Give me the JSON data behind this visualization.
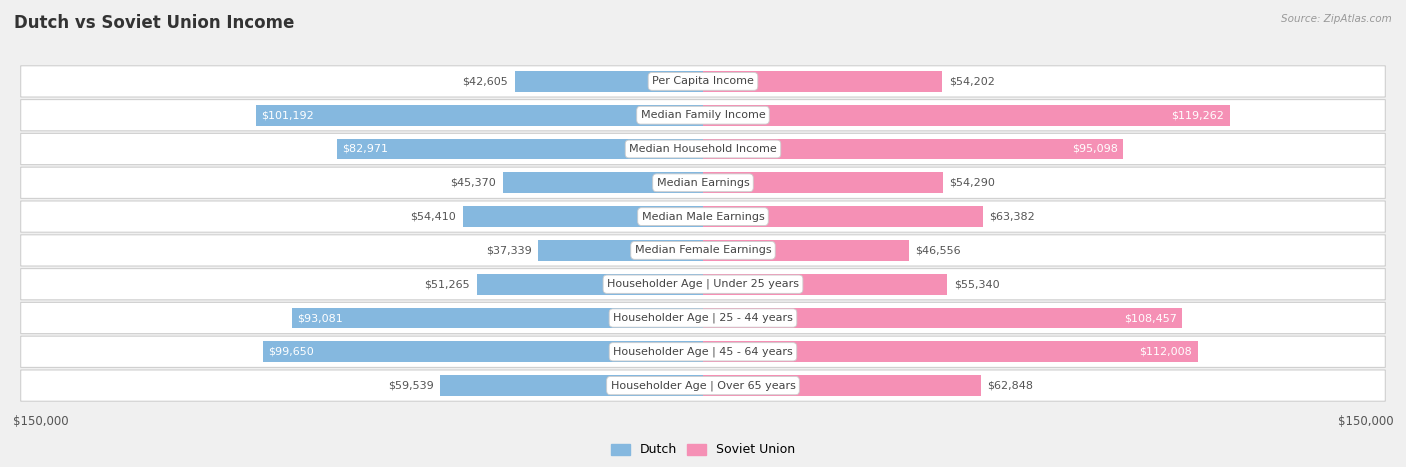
{
  "title": "Dutch vs Soviet Union Income",
  "source": "Source: ZipAtlas.com",
  "categories": [
    "Per Capita Income",
    "Median Family Income",
    "Median Household Income",
    "Median Earnings",
    "Median Male Earnings",
    "Median Female Earnings",
    "Householder Age | Under 25 years",
    "Householder Age | 25 - 44 years",
    "Householder Age | 45 - 64 years",
    "Householder Age | Over 65 years"
  ],
  "dutch_values": [
    42605,
    101192,
    82971,
    45370,
    54410,
    37339,
    51265,
    93081,
    99650,
    59539
  ],
  "soviet_values": [
    54202,
    119262,
    95098,
    54290,
    63382,
    46556,
    55340,
    108457,
    112008,
    62848
  ],
  "dutch_labels": [
    "$42,605",
    "$101,192",
    "$82,971",
    "$45,370",
    "$54,410",
    "$37,339",
    "$51,265",
    "$93,081",
    "$99,650",
    "$59,539"
  ],
  "soviet_labels": [
    "$54,202",
    "$119,262",
    "$95,098",
    "$54,290",
    "$63,382",
    "$46,556",
    "$55,340",
    "$108,457",
    "$112,008",
    "$62,848"
  ],
  "max_val": 150000,
  "dutch_color": "#85b8df",
  "soviet_color": "#f590b5",
  "background_color": "#f0f0f0",
  "row_bg_color": "#ffffff",
  "row_border_color": "#d0d0d0",
  "title_fontsize": 12,
  "bar_label_fontsize": 8,
  "cat_label_fontsize": 8,
  "inside_threshold": 65000,
  "legend_dutch": "Dutch",
  "legend_soviet": "Soviet Union"
}
